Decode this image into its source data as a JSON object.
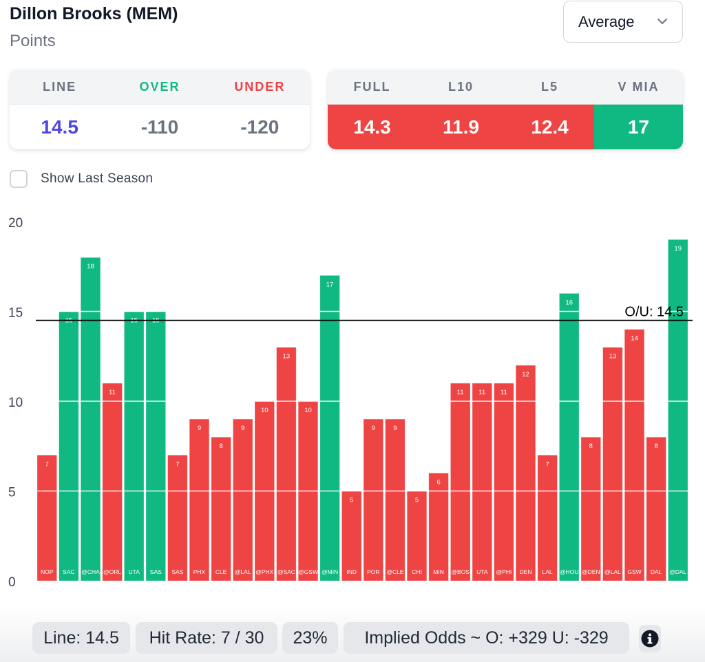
{
  "header": {
    "player_name": "Dillon Brooks (MEM)",
    "stat_type": "Points"
  },
  "dropdown": {
    "selected": "Average"
  },
  "line_card": {
    "headers": {
      "line": "LINE",
      "over": "OVER",
      "under": "UNDER"
    },
    "values": {
      "line": "14.5",
      "over": "-110",
      "under": "-120"
    }
  },
  "avg_card": {
    "headers": [
      "FULL",
      "L10",
      "L5",
      "V MIA"
    ],
    "values": [
      "14.3",
      "11.9",
      "12.4",
      "17"
    ],
    "status": [
      "under",
      "under",
      "under",
      "over"
    ]
  },
  "show_last_season": {
    "label": "Show Last Season",
    "checked": false
  },
  "colors": {
    "over": "#10b981",
    "under": "#ef4444",
    "line_value": "#4f46e5"
  },
  "chart_data": {
    "type": "bar",
    "title": "",
    "xlabel": "",
    "ylabel": "",
    "ylim": [
      0,
      20
    ],
    "yticks": [
      0,
      5,
      10,
      15,
      20
    ],
    "grid": true,
    "reference_line": {
      "value": 14.5,
      "label": "O/U: 14.5"
    },
    "categories": [
      "NOP",
      "SAC",
      "@CHA",
      "@ORL",
      "UTA",
      "SAS",
      "SAS",
      "PHX",
      "CLE",
      "@LAL",
      "@PHX",
      "@SAC",
      "@GSW",
      "@MIN",
      "IND",
      "POR",
      "@CLE",
      "CHI",
      "MIN",
      "@BOS",
      "UTA",
      "@PHI",
      "DEN",
      "LAL",
      "@HOU",
      "@DEN",
      "@LAL",
      "GSW",
      "DAL",
      "@DAL"
    ],
    "values": [
      7,
      15,
      18,
      11,
      15,
      15,
      7,
      9,
      8,
      9,
      10,
      13,
      10,
      17,
      5,
      9,
      9,
      5,
      6,
      11,
      11,
      11,
      12,
      7,
      16,
      8,
      13,
      14,
      8,
      19
    ]
  },
  "footer": {
    "line": "Line: 14.5",
    "hit_rate": "Hit Rate: 7 / 30",
    "percent": "23%",
    "implied_odds": "Implied Odds ~ O: +329 U: -329"
  }
}
